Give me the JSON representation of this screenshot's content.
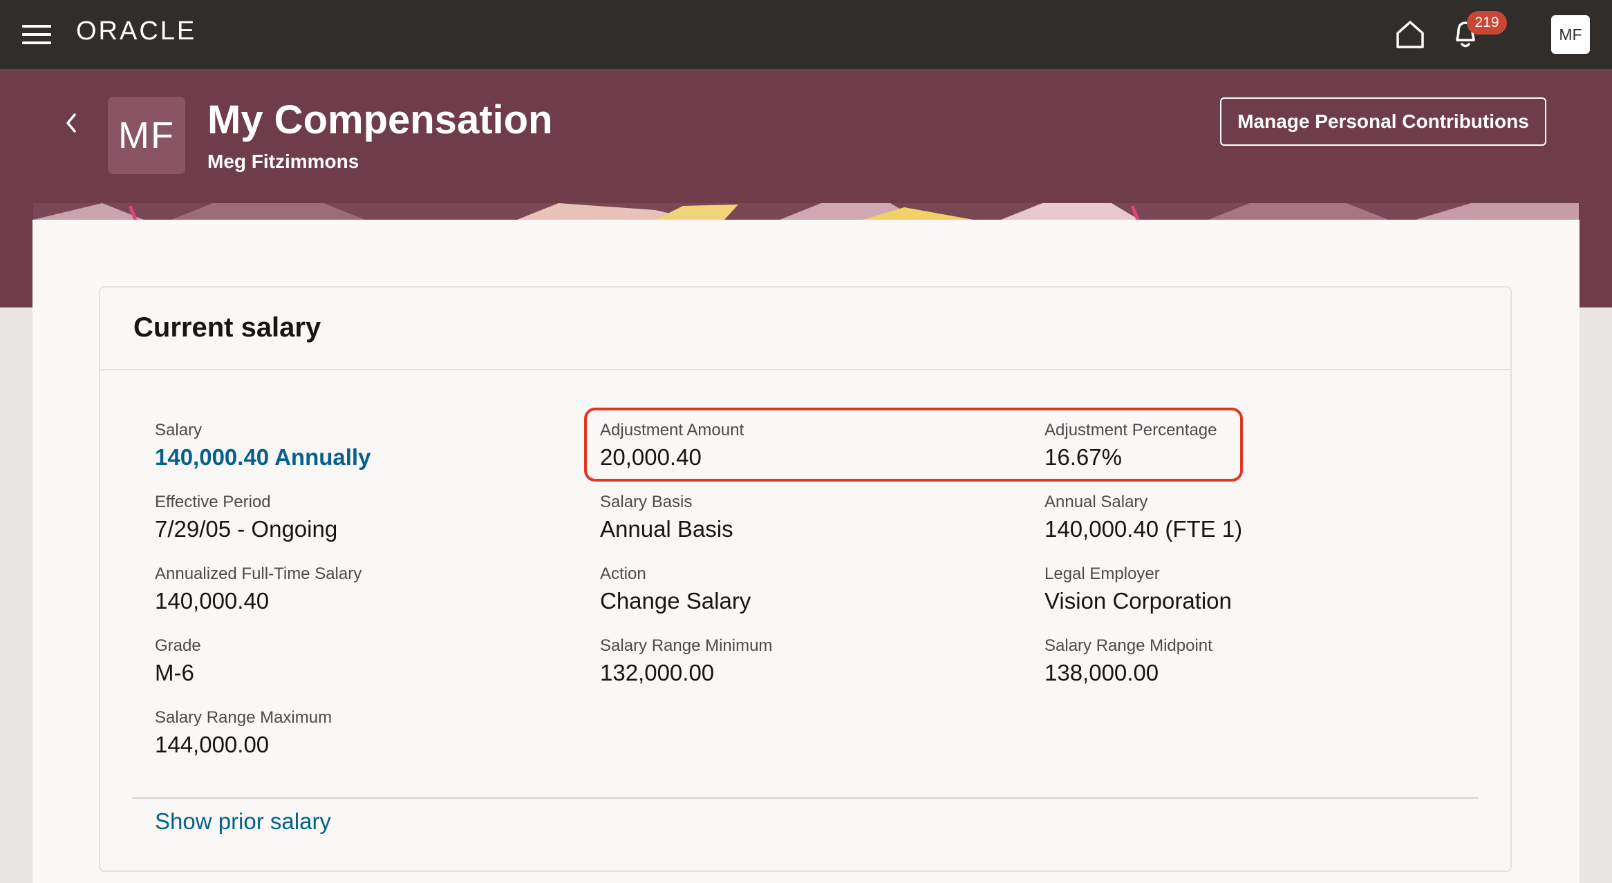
{
  "topbar": {
    "logo": "ORACLE",
    "notification_count": "219",
    "user_initials": "MF"
  },
  "header": {
    "avatar_initials": "MF",
    "title": "My Compensation",
    "subtitle": "Meg Fitzimmons",
    "manage_button": "Manage Personal Contributions"
  },
  "card": {
    "title": "Current salary",
    "fields": {
      "salary": {
        "label": "Salary",
        "value": "140,000.40 Annually"
      },
      "adjustment_amount": {
        "label": "Adjustment Amount",
        "value": "20,000.40"
      },
      "adjustment_percentage": {
        "label": "Adjustment Percentage",
        "value": "16.67%"
      },
      "effective_period": {
        "label": "Effective Period",
        "value": "7/29/05 - Ongoing"
      },
      "salary_basis": {
        "label": "Salary Basis",
        "value": "Annual Basis"
      },
      "annual_salary": {
        "label": "Annual Salary",
        "value": "140,000.40 (FTE 1)"
      },
      "annualized_fulltime": {
        "label": "Annualized Full-Time Salary",
        "value": "140,000.40"
      },
      "action": {
        "label": "Action",
        "value": "Change Salary"
      },
      "legal_employer": {
        "label": "Legal Employer",
        "value": "Vision Corporation"
      },
      "grade": {
        "label": "Grade",
        "value": "M-6"
      },
      "range_min": {
        "label": "Salary Range Minimum",
        "value": "132,000.00"
      },
      "range_mid": {
        "label": "Salary Range Midpoint",
        "value": "138,000.00"
      },
      "range_max": {
        "label": "Salary Range Maximum",
        "value": "144,000.00"
      }
    },
    "show_prior_link": "Show prior salary"
  },
  "colors": {
    "topbar": "#312d2a",
    "banner": "#6f3d4a",
    "link": "#05618c",
    "highlight": "#e0381f",
    "badge": "#c74634"
  }
}
